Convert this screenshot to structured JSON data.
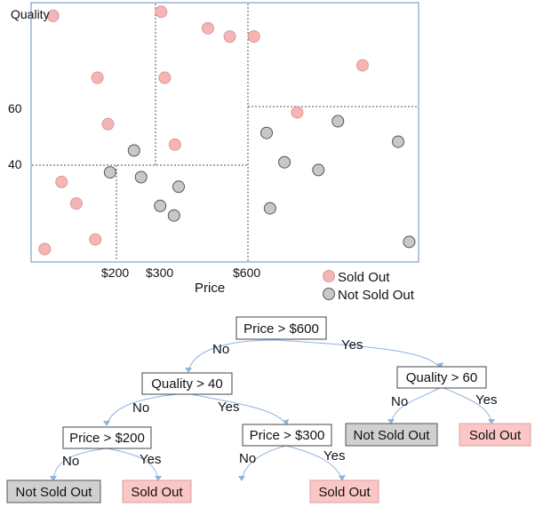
{
  "scatter": {
    "y_axis_title": "Quality",
    "x_axis_title": "Price",
    "y_ticks": [
      "60",
      "40"
    ],
    "x_ticks": [
      "$200",
      "$300",
      "$600"
    ],
    "legend": {
      "sold_out": "Sold Out",
      "not_sold_out": "Not Sold Out"
    }
  },
  "tree": {
    "root": "Price > $600",
    "left_node": "Quality > 40",
    "right_node": "Quality > 60",
    "ll_node": "Price > $200",
    "lr_node": "Price > $300",
    "leaf_ll_no": "Not Sold Out",
    "leaf_ll_yes": "Sold Out",
    "leaf_lr_yes": "Sold Out",
    "leaf_r_no": "Not Sold Out",
    "leaf_r_yes": "Sold Out",
    "edge_no": "No",
    "edge_yes": "Yes"
  },
  "colors": {
    "sold_out": "#f7b4b4",
    "not_sold_out": "#c8c8c8",
    "frame": "#7f9fcf",
    "edge": "#8fb3e0"
  },
  "chart_data": {
    "type": "scatter",
    "xlabel": "Price",
    "ylabel": "Quality",
    "x_ticks": [
      "$200",
      "$300",
      "$600"
    ],
    "y_ticks": [
      "40",
      "60"
    ],
    "series": [
      {
        "name": "Sold Out",
        "points": [
          {
            "x": 50,
            "y": 82
          },
          {
            "x": 155,
            "y": 67
          },
          {
            "x": 318,
            "y": 83
          },
          {
            "x": 330,
            "y": 67
          },
          {
            "x": 541,
            "y": 77
          },
          {
            "x": 607,
            "y": 77
          },
          {
            "x": 735,
            "y": 70
          },
          {
            "x": 180,
            "y": 54
          },
          {
            "x": 363,
            "y": 47
          },
          {
            "x": 470,
            "y": 79
          },
          {
            "x": 658,
            "y": 58
          },
          {
            "x": 70,
            "y": 33
          },
          {
            "x": 105,
            "y": 24
          },
          {
            "x": 30,
            "y": 5
          },
          {
            "x": 150,
            "y": 9
          }
        ]
      },
      {
        "name": "Not Sold Out",
        "points": [
          {
            "x": 245,
            "y": 45
          },
          {
            "x": 185,
            "y": 37
          },
          {
            "x": 263,
            "y": 35
          },
          {
            "x": 315,
            "y": 23
          },
          {
            "x": 375,
            "y": 31
          },
          {
            "x": 360,
            "y": 19
          },
          {
            "x": 622,
            "y": 51
          },
          {
            "x": 643,
            "y": 41
          },
          {
            "x": 706,
            "y": 55
          },
          {
            "x": 777,
            "y": 48
          },
          {
            "x": 683,
            "y": 38
          },
          {
            "x": 626,
            "y": 22
          },
          {
            "x": 790,
            "y": 8
          }
        ]
      }
    ]
  }
}
